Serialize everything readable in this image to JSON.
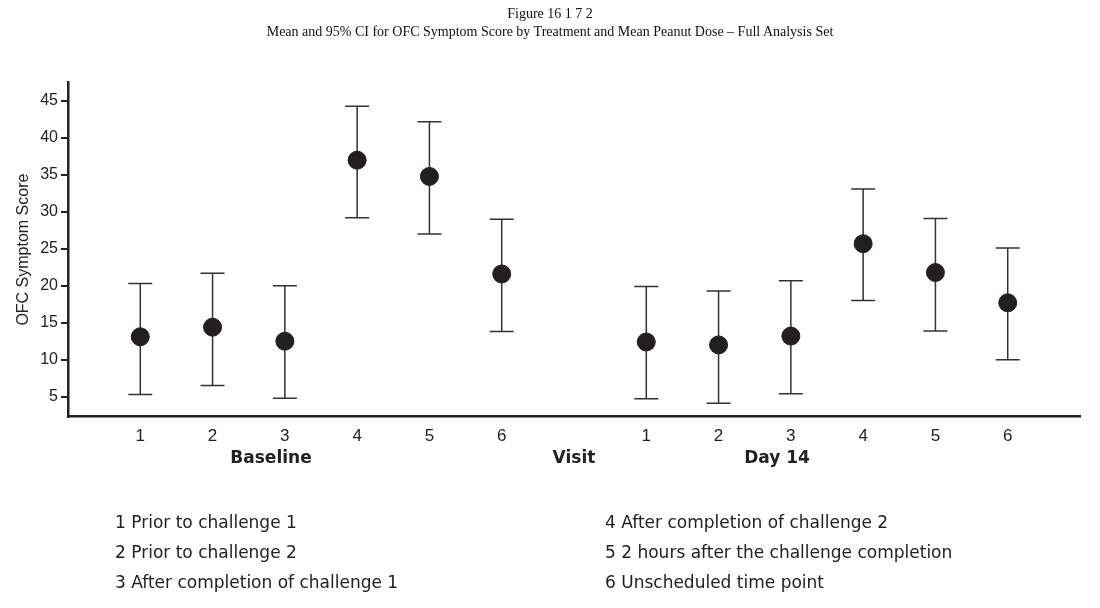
{
  "chart_data": {
    "type": "scatter",
    "title": "Figure 16 1 7 2",
    "subtitle": "Mean and 95% CI for OFC Symptom Score by Treatment and Mean Peanut Dose – Full Analysis Set",
    "xlabel": "Visit",
    "ylabel": "OFC Symptom Score",
    "categories": [
      "1",
      "2",
      "3",
      "4",
      "5",
      "6",
      null,
      "1",
      "2",
      "3",
      "4",
      "5",
      "6"
    ],
    "values": [
      13.1,
      14.4,
      12.5,
      37.0,
      34.8,
      21.6,
      null,
      12.4,
      12.0,
      13.2,
      25.7,
      21.8,
      17.7
    ],
    "errors": [
      [
        5.3,
        20.3
      ],
      [
        6.5,
        21.7
      ],
      [
        4.8,
        20.0
      ],
      [
        29.2,
        44.3
      ],
      [
        27.0,
        42.2
      ],
      [
        13.8,
        29.0
      ],
      null,
      [
        4.7,
        19.9
      ],
      [
        4.1,
        19.3
      ],
      [
        5.4,
        20.7
      ],
      [
        18.0,
        33.1
      ],
      [
        13.9,
        29.1
      ],
      [
        10.0,
        25.1
      ]
    ],
    "color": "#231f20",
    "marker": "circle",
    "ylim": [
      2.3,
      47.5
    ],
    "yticks": [
      5,
      10,
      15,
      20,
      25,
      30,
      35,
      40,
      45
    ],
    "grid": false,
    "legend": false,
    "annotations": [
      "Baseline",
      "Day 14",
      "1 Prior to challenge 1",
      "2 Prior to challenge 2",
      "3 After completion of challenge 1",
      "4 After completion of challenge 2",
      "5 2 hours after the challenge completion",
      "6 Unscheduled time point"
    ]
  }
}
